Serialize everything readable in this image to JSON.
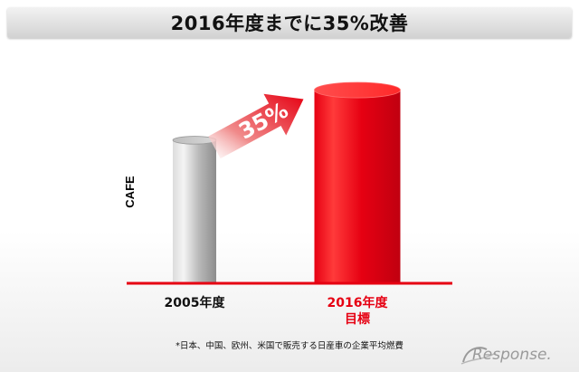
{
  "title": "2016年度までに35%改善",
  "footnote": "*日本、中国、欧州、米国で販売する日産車の企業平均燃費",
  "logo_text": "Response.",
  "chart_data": {
    "type": "bar",
    "ylabel": "CAFE",
    "categories": [
      {
        "label": "2005年度",
        "color": "#111111"
      },
      {
        "label": "2016年度\n目標",
        "color": "#e60012"
      }
    ],
    "values": [
      100,
      135
    ],
    "ylim": [
      0,
      160
    ],
    "annotation": {
      "text": "35%",
      "type": "arrow",
      "from": 0,
      "to": 1
    },
    "colors": {
      "baseline": "#e60012",
      "bar_2005": "#a8a8a8",
      "bar_2016": "#e60012"
    }
  }
}
